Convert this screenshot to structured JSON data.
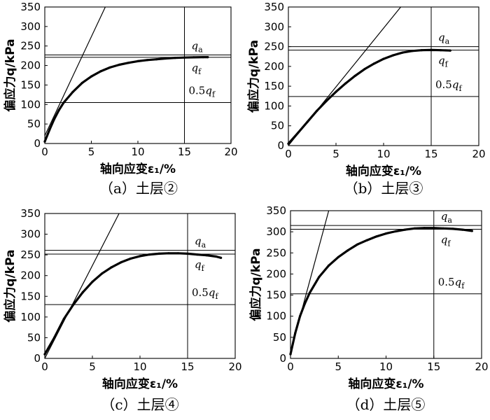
{
  "chart_data": [
    {
      "type": "line",
      "caption": "（a）土层②",
      "xlabel": "轴向应变ε₁/%",
      "ylabel": "偏应力q/kPa",
      "xlim": [
        0,
        20
      ],
      "ylim": [
        0,
        350
      ],
      "xticks": [
        "0",
        "5",
        "10",
        "15",
        "20"
      ],
      "yticks": [
        "0",
        "50",
        "100",
        "150",
        "200",
        "250",
        "300",
        "350"
      ],
      "series": [
        {
          "values": [
            [
              0,
              5
            ],
            [
              0.5,
              35
            ],
            [
              1,
              62
            ],
            [
              1.5,
              85
            ],
            [
              2,
              104
            ],
            [
              3,
              132
            ],
            [
              4,
              155
            ],
            [
              5,
              172
            ],
            [
              6,
              185
            ],
            [
              7,
              195
            ],
            [
              8,
              202
            ],
            [
              9,
              207
            ],
            [
              10,
              211
            ],
            [
              11,
              214
            ],
            [
              12,
              216
            ],
            [
              13,
              218
            ],
            [
              14,
              219.5
            ],
            [
              15,
              220.5
            ],
            [
              16,
              221
            ],
            [
              17,
              221.5
            ],
            [
              17.5,
              221.5
            ]
          ]
        }
      ],
      "tangent_line": [
        [
          0,
          20
        ],
        [
          6.5,
          350
        ]
      ],
      "reference_lines": {
        "qa": 227,
        "qf": 221,
        "half_qf": 105,
        "strain_15": 15
      },
      "annotations": {
        "qa": "q_a",
        "qf": "q_f",
        "half": "0.5q_f"
      }
    },
    {
      "type": "line",
      "caption": "（b）土层③",
      "xlabel": "轴向应变ε₁/%",
      "ylabel": "偏应力q/kPa",
      "xlim": [
        0,
        20
      ],
      "ylim": [
        0,
        350
      ],
      "xticks": [
        "0",
        "5",
        "10",
        "15",
        "20"
      ],
      "yticks": [
        "0",
        "50",
        "100",
        "150",
        "200",
        "250",
        "300",
        "350"
      ],
      "series": [
        {
          "values": [
            [
              0,
              5
            ],
            [
              1,
              32
            ],
            [
              2,
              60
            ],
            [
              3,
              88
            ],
            [
              4,
              113
            ],
            [
              5,
              136
            ],
            [
              6,
              157
            ],
            [
              7,
              176
            ],
            [
              8,
              193
            ],
            [
              9,
              207
            ],
            [
              10,
              219
            ],
            [
              11,
              228
            ],
            [
              12,
              235
            ],
            [
              13,
              239
            ],
            [
              14,
              241
            ],
            [
              15,
              241.5
            ],
            [
              16,
              241
            ],
            [
              17,
              240
            ]
          ]
        }
      ],
      "tangent_line": [
        [
          0,
          0
        ],
        [
          11.8,
          350
        ]
      ],
      "reference_lines": {
        "qa": 250,
        "qf": 241,
        "half_qf": 124,
        "strain_15": 15
      },
      "annotations": {
        "qa": "q_a",
        "qf": "q_f",
        "half": "0.5q_f"
      }
    },
    {
      "type": "line",
      "caption": "（c）土层④",
      "xlabel": "轴向应变ε₁/%",
      "ylabel": "偏应力q/kPa",
      "xlim": [
        0,
        20
      ],
      "ylim": [
        0,
        350
      ],
      "xticks": [
        "0",
        "5",
        "10",
        "15",
        "20"
      ],
      "yticks": [
        "0",
        "50",
        "100",
        "150",
        "200",
        "250",
        "300",
        "350"
      ],
      "series": [
        {
          "values": [
            [
              0,
              10
            ],
            [
              1,
              50
            ],
            [
              2,
              95
            ],
            [
              3,
              130
            ],
            [
              4,
              160
            ],
            [
              5,
              185
            ],
            [
              6,
              205
            ],
            [
              7,
              220
            ],
            [
              8,
              232
            ],
            [
              9,
              241
            ],
            [
              10,
              247
            ],
            [
              11,
              251
            ],
            [
              12,
              253
            ],
            [
              13,
              254
            ],
            [
              14,
              254
            ],
            [
              15,
              253
            ],
            [
              16,
              251
            ],
            [
              17,
              249
            ],
            [
              18,
              246
            ],
            [
              18.5,
              243
            ]
          ]
        }
      ],
      "tangent_line": [
        [
          0,
          0
        ],
        [
          7.8,
          350
        ]
      ],
      "reference_lines": {
        "qa": 261,
        "qf": 252,
        "half_qf": 130,
        "strain_15": 15
      },
      "annotations": {
        "qa": "q_a",
        "qf": "q_f",
        "half": "0.5q_f"
      }
    },
    {
      "type": "line",
      "caption": "（d）土层⑤",
      "xlabel": "轴向应变ε₁/%",
      "ylabel": "偏应力q/kPa",
      "xlim": [
        0,
        20
      ],
      "ylim": [
        0,
        350
      ],
      "xticks": [
        "0",
        "5",
        "10",
        "15",
        "20"
      ],
      "yticks": [
        "0",
        "50",
        "100",
        "150",
        "200",
        "250",
        "300",
        "350"
      ],
      "series": [
        {
          "values": [
            [
              0,
              10
            ],
            [
              0.5,
              60
            ],
            [
              1,
              100
            ],
            [
              1.5,
              130
            ],
            [
              2,
              155
            ],
            [
              3,
              193
            ],
            [
              4,
              220
            ],
            [
              5,
              240
            ],
            [
              6,
              256
            ],
            [
              7,
              270
            ],
            [
              8,
              280
            ],
            [
              9,
              289
            ],
            [
              10,
              296
            ],
            [
              11,
              301
            ],
            [
              12,
              305
            ],
            [
              13,
              308
            ],
            [
              14,
              309
            ],
            [
              15,
              309
            ],
            [
              16,
              308
            ],
            [
              17,
              307
            ],
            [
              18,
              305
            ],
            [
              19,
              302
            ]
          ]
        }
      ],
      "tangent_line": [
        [
          0,
          15
        ],
        [
          4.0,
          350
        ]
      ],
      "reference_lines": {
        "qa": 315,
        "qf": 306,
        "half_qf": 153,
        "strain_15": 15
      },
      "annotations": {
        "qa": "q_a",
        "qf": "q_f",
        "half": "0.5q_f"
      }
    }
  ],
  "colors": {
    "line": "#000000",
    "background": "#ffffff"
  }
}
